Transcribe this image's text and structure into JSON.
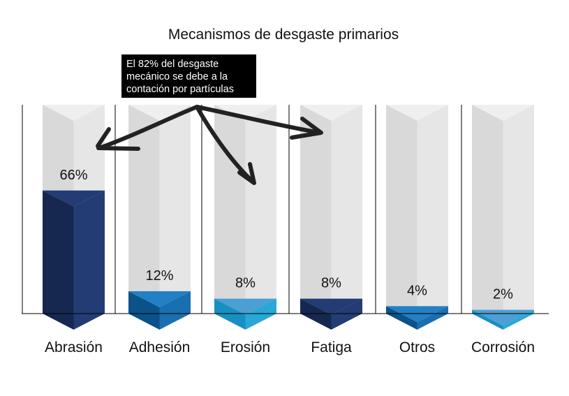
{
  "chart_data": {
    "type": "bar",
    "title": "Mecanismos de desgaste primarios",
    "categories": [
      "Abrasión",
      "Adhesión",
      "Erosión",
      "Fatiga",
      "Otros",
      "Corrosión"
    ],
    "values": [
      66,
      12,
      8,
      8,
      4,
      2
    ],
    "value_labels": [
      "66%",
      "12%",
      "8%",
      "8%",
      "4%",
      "2%"
    ],
    "unit": "%",
    "ylim": [
      0,
      100
    ],
    "grid": false,
    "annotation": {
      "lines": [
        "El 82% del desgaste",
        "mecánico se debe a la",
        "contación por partículas"
      ],
      "points_to": [
        "Abrasión",
        "Erosión",
        "Fatiga"
      ]
    },
    "colors": {
      "background_column": "#e6e6e6",
      "background_column_dark": "#d9d9d9",
      "bars": [
        {
          "left": "#16284f",
          "right": "#233c74",
          "cap": "#233c74"
        },
        {
          "left": "#0a5289",
          "right": "#1a6fb0",
          "cap": "#2380c4"
        },
        {
          "left": "#178fc0",
          "right": "#29a7d7",
          "cap": "#4b9fd2"
        },
        {
          "left": "#16284f",
          "right": "#233c74",
          "cap": "#233c74"
        },
        {
          "left": "#0a5289",
          "right": "#1a6fb0",
          "cap": "#2380c4"
        },
        {
          "left": "#178fc0",
          "right": "#29a7d7",
          "cap": "#4b9fd2"
        }
      ],
      "annotation_box": "#000000",
      "arrows": "#222222",
      "axis": "#000000"
    }
  }
}
